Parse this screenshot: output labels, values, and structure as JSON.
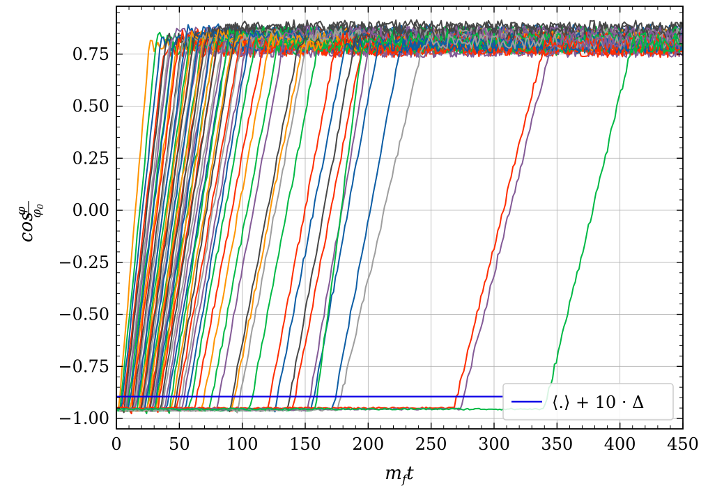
{
  "chart_data": {
    "type": "line",
    "xlabel": "m_f t",
    "xlabel_main": "m",
    "xlabel_sub": "f",
    "xlabel_tail": "t",
    "ylabel": "cos φ/φ₀",
    "ylabel_main": "cos",
    "ylabel_num": "φ",
    "ylabel_den": "φ",
    "ylabel_den_sub": "0",
    "xlim": [
      0,
      450
    ],
    "ylim": [
      -1.05,
      0.98
    ],
    "xticks": [
      0,
      50,
      100,
      150,
      200,
      250,
      300,
      350,
      400,
      450
    ],
    "xtick_labels": [
      "0",
      "50",
      "100",
      "150",
      "200",
      "250",
      "300",
      "350",
      "400",
      "450"
    ],
    "yticks": [
      -1.0,
      -0.75,
      -0.5,
      -0.25,
      0.0,
      0.25,
      0.5,
      0.75
    ],
    "ytick_labels": [
      "−1.00",
      "−0.75",
      "−0.50",
      "−0.25",
      "0.00",
      "0.25",
      "0.50",
      "0.75"
    ],
    "grid": true,
    "legend_position": "bottom-right",
    "legend_entries": [
      {
        "label": "⟨.⟩ + 10 · Δ",
        "color": "#0c00e6"
      }
    ],
    "threshold_line": {
      "y": -0.895,
      "color": "#0c00e6"
    },
    "series_colors": [
      "#0c5da5",
      "#00b945",
      "#ff2c00",
      "#ff9500",
      "#845b97",
      "#474747",
      "#9e9e9e"
    ],
    "series": [
      {
        "start": 2,
        "end": 26,
        "base": -0.96,
        "plateau": 0.79,
        "color": "#ff9500"
      },
      {
        "start": 3,
        "end": 32,
        "base": -0.955,
        "plateau": 0.82,
        "color": "#00b945"
      },
      {
        "start": 4,
        "end": 35,
        "base": -0.96,
        "plateau": 0.8,
        "color": "#0c5da5"
      },
      {
        "start": 5,
        "end": 38,
        "base": -0.955,
        "plateau": 0.77,
        "color": "#ff2c00"
      },
      {
        "start": 6,
        "end": 40,
        "base": -0.96,
        "plateau": 0.83,
        "color": "#474747"
      },
      {
        "start": 7,
        "end": 42,
        "base": -0.955,
        "plateau": 0.8,
        "color": "#9e9e9e"
      },
      {
        "start": 8,
        "end": 44,
        "base": -0.96,
        "plateau": 0.85,
        "color": "#845b97"
      },
      {
        "start": 9,
        "end": 45,
        "base": -0.955,
        "plateau": 0.78,
        "color": "#00b945"
      },
      {
        "start": 10,
        "end": 46,
        "base": -0.96,
        "plateau": 0.81,
        "color": "#0c5da5"
      },
      {
        "start": 11,
        "end": 48,
        "base": -0.955,
        "plateau": 0.79,
        "color": "#ff9500"
      },
      {
        "start": 12,
        "end": 50,
        "base": -0.96,
        "plateau": 0.84,
        "color": "#ff2c00"
      },
      {
        "start": 13,
        "end": 52,
        "base": -0.955,
        "plateau": 0.8,
        "color": "#474747"
      },
      {
        "start": 14,
        "end": 53,
        "base": -0.96,
        "plateau": 0.82,
        "color": "#9e9e9e"
      },
      {
        "start": 15,
        "end": 55,
        "base": -0.955,
        "plateau": 0.77,
        "color": "#845b97"
      },
      {
        "start": 16,
        "end": 56,
        "base": -0.96,
        "plateau": 0.86,
        "color": "#0c5da5"
      },
      {
        "start": 17,
        "end": 58,
        "base": -0.955,
        "plateau": 0.8,
        "color": "#00b945"
      },
      {
        "start": 18,
        "end": 60,
        "base": -0.96,
        "plateau": 0.83,
        "color": "#ff9500"
      },
      {
        "start": 19,
        "end": 61,
        "base": -0.955,
        "plateau": 0.79,
        "color": "#ff2c00"
      },
      {
        "start": 20,
        "end": 62,
        "base": -0.96,
        "plateau": 0.84,
        "color": "#474747"
      },
      {
        "start": 21,
        "end": 64,
        "base": -0.955,
        "plateau": 0.81,
        "color": "#9e9e9e"
      },
      {
        "start": 22,
        "end": 65,
        "base": -0.96,
        "plateau": 0.78,
        "color": "#845b97"
      },
      {
        "start": 23,
        "end": 66,
        "base": -0.955,
        "plateau": 0.85,
        "color": "#0c5da5"
      },
      {
        "start": 24,
        "end": 68,
        "base": -0.96,
        "plateau": 0.8,
        "color": "#00b945"
      },
      {
        "start": 25,
        "end": 69,
        "base": -0.955,
        "plateau": 0.82,
        "color": "#ff9500"
      },
      {
        "start": 26,
        "end": 70,
        "base": -0.96,
        "plateau": 0.79,
        "color": "#ff2c00"
      },
      {
        "start": 27,
        "end": 72,
        "base": -0.955,
        "plateau": 0.86,
        "color": "#474747"
      },
      {
        "start": 28,
        "end": 73,
        "base": -0.96,
        "plateau": 0.81,
        "color": "#9e9e9e"
      },
      {
        "start": 29,
        "end": 74,
        "base": -0.955,
        "plateau": 0.77,
        "color": "#845b97"
      },
      {
        "start": 30,
        "end": 76,
        "base": -0.96,
        "plateau": 0.83,
        "color": "#0c5da5"
      },
      {
        "start": 31,
        "end": 78,
        "base": -0.955,
        "plateau": 0.8,
        "color": "#00b945"
      },
      {
        "start": 32,
        "end": 79,
        "base": -0.96,
        "plateau": 0.84,
        "color": "#ff9500"
      },
      {
        "start": 33,
        "end": 80,
        "base": -0.955,
        "plateau": 0.78,
        "color": "#ff2c00"
      },
      {
        "start": 35,
        "end": 82,
        "base": -0.96,
        "plateau": 0.87,
        "color": "#474747"
      },
      {
        "start": 36,
        "end": 84,
        "base": -0.955,
        "plateau": 0.8,
        "color": "#9e9e9e"
      },
      {
        "start": 38,
        "end": 86,
        "base": -0.96,
        "plateau": 0.82,
        "color": "#845b97"
      },
      {
        "start": 40,
        "end": 88,
        "base": -0.955,
        "plateau": 0.79,
        "color": "#0c5da5"
      },
      {
        "start": 42,
        "end": 90,
        "base": -0.96,
        "plateau": 0.85,
        "color": "#00b945"
      },
      {
        "start": 44,
        "end": 92,
        "base": -0.955,
        "plateau": 0.81,
        "color": "#ff9500"
      },
      {
        "start": 46,
        "end": 95,
        "base": -0.96,
        "plateau": 0.88,
        "color": "#474747"
      },
      {
        "start": 48,
        "end": 98,
        "base": -0.955,
        "plateau": 0.8,
        "color": "#ff2c00"
      },
      {
        "start": 50,
        "end": 100,
        "base": -0.96,
        "plateau": 0.84,
        "color": "#9e9e9e"
      },
      {
        "start": 52,
        "end": 103,
        "base": -0.955,
        "plateau": 0.79,
        "color": "#845b97"
      },
      {
        "start": 55,
        "end": 106,
        "base": -0.96,
        "plateau": 0.83,
        "color": "#0c5da5"
      },
      {
        "start": 58,
        "end": 110,
        "base": -0.955,
        "plateau": 0.8,
        "color": "#00b945"
      },
      {
        "start": 62,
        "end": 116,
        "base": -0.96,
        "plateau": 0.78,
        "color": "#ff2c00"
      },
      {
        "start": 68,
        "end": 122,
        "base": -0.955,
        "plateau": 0.82,
        "color": "#ff9500"
      },
      {
        "start": 74,
        "end": 128,
        "base": -0.96,
        "plateau": 0.79,
        "color": "#00b945"
      },
      {
        "start": 80,
        "end": 134,
        "base": -0.955,
        "plateau": 0.85,
        "color": "#845b97"
      },
      {
        "start": 90,
        "end": 145,
        "base": -0.96,
        "plateau": 0.81,
        "color": "#474747"
      },
      {
        "start": 92,
        "end": 148,
        "base": -0.955,
        "plateau": 0.8,
        "color": "#ff9500"
      },
      {
        "start": 96,
        "end": 152,
        "base": -0.96,
        "plateau": 0.83,
        "color": "#9e9e9e"
      },
      {
        "start": 106,
        "end": 160,
        "base": -0.955,
        "plateau": 0.79,
        "color": "#00b945"
      },
      {
        "start": 120,
        "end": 175,
        "base": -0.96,
        "plateau": 0.82,
        "color": "#ff2c00"
      },
      {
        "start": 126,
        "end": 182,
        "base": -0.955,
        "plateau": 0.8,
        "color": "#0c5da5"
      },
      {
        "start": 136,
        "end": 190,
        "base": -0.96,
        "plateau": 0.84,
        "color": "#474747"
      },
      {
        "start": 140,
        "end": 195,
        "base": -0.955,
        "plateau": 0.78,
        "color": "#ff2c00"
      },
      {
        "start": 152,
        "end": 202,
        "base": -0.96,
        "plateau": 0.83,
        "color": "#845b97"
      },
      {
        "start": 155,
        "end": 208,
        "base": -0.955,
        "plateau": 0.8,
        "color": "#0c5da5"
      },
      {
        "start": 158,
        "end": 196,
        "base": -0.96,
        "plateau": 0.82,
        "color": "#00b945"
      },
      {
        "start": 172,
        "end": 226,
        "base": -0.955,
        "plateau": 0.79,
        "color": "#0c5da5"
      },
      {
        "start": 176,
        "end": 244,
        "base": -0.96,
        "plateau": 0.81,
        "color": "#9e9e9e"
      },
      {
        "start": 268,
        "end": 340,
        "base": -0.95,
        "plateau": 0.8,
        "color": "#ff2c00"
      },
      {
        "start": 273,
        "end": 346,
        "base": -0.955,
        "plateau": 0.81,
        "color": "#845b97"
      },
      {
        "start": 340,
        "end": 410,
        "base": -0.955,
        "plateau": 0.8,
        "color": "#00b945"
      }
    ]
  }
}
